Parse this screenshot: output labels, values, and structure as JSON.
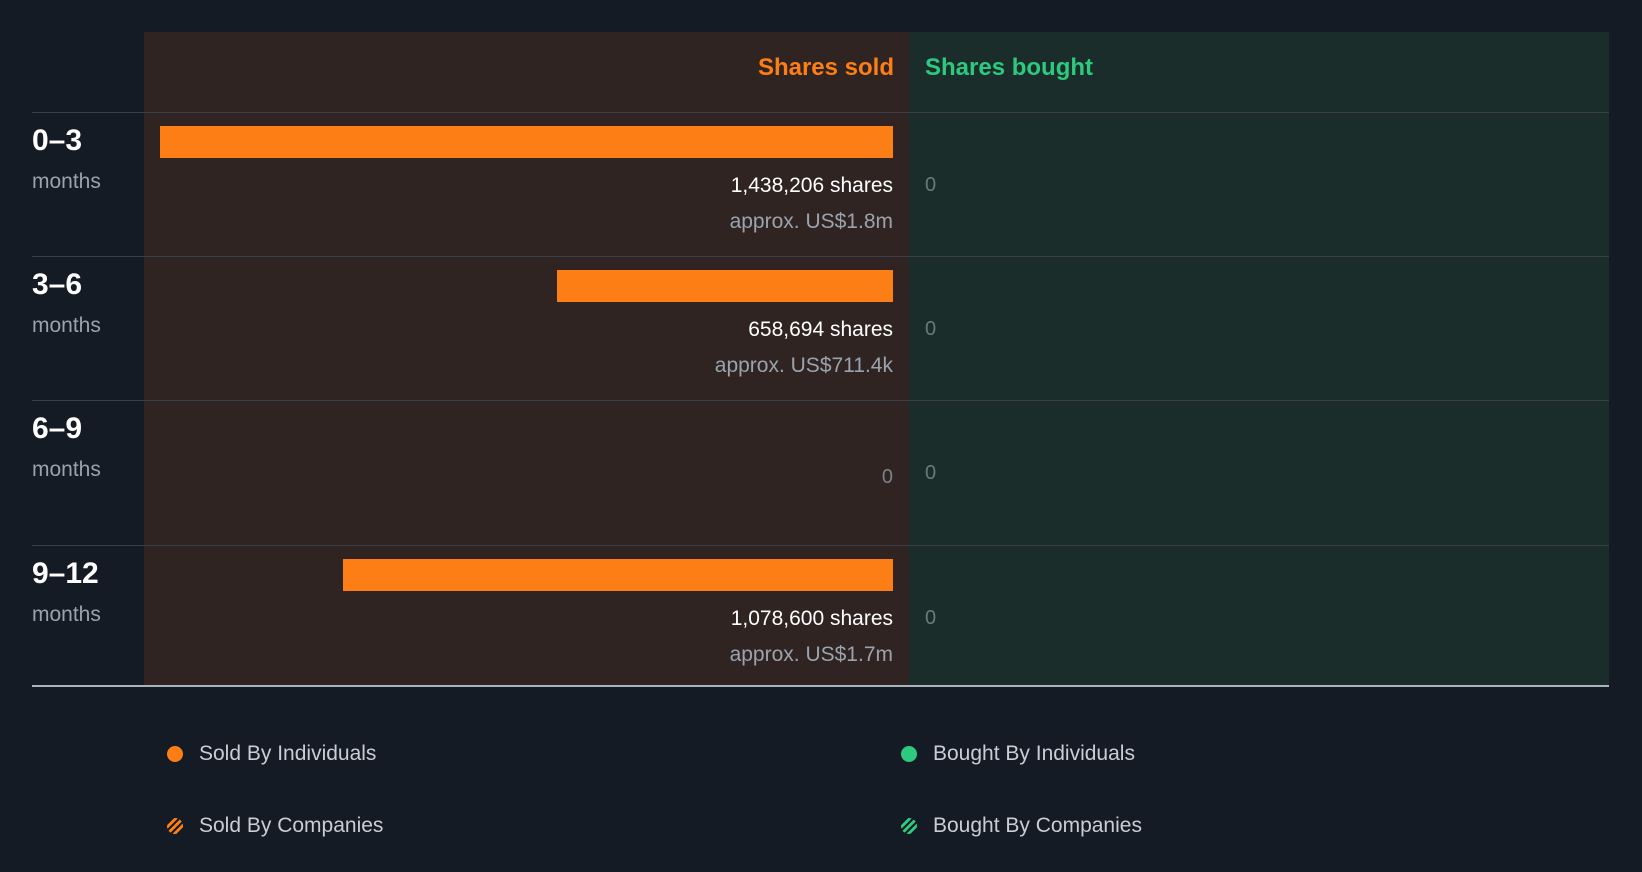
{
  "colors": {
    "sold": "#fd7e14",
    "bought": "#2dc97e",
    "background": "#151b24",
    "sold_panel": "#2f2422",
    "bought_panel": "#1a2d2b"
  },
  "headers": {
    "sold": "Shares sold",
    "bought": "Shares bought"
  },
  "chart_data": {
    "type": "bar",
    "orientation": "horizontal",
    "categories": [
      "0–3",
      "3–6",
      "6–9",
      "9–12"
    ],
    "unit_label": "months",
    "series": [
      {
        "name": "Shares sold",
        "values": [
          1438206,
          658694,
          0,
          1078600
        ]
      },
      {
        "name": "Shares bought",
        "values": [
          0,
          0,
          0,
          0
        ]
      }
    ],
    "value_labels": [
      "1,438,206 shares",
      "658,694 shares",
      "0",
      "1,078,600 shares"
    ],
    "approx_labels": [
      "approx. US$1.8m",
      "approx. US$711.4k",
      "",
      "approx. US$1.7m"
    ],
    "bought_labels": [
      "0",
      "0",
      "0",
      "0"
    ],
    "xlim": [
      0,
      1438206
    ]
  },
  "legend": [
    {
      "label": "Sold By Individuals",
      "icon": "solid-dot-icon",
      "color": "#fd7e14"
    },
    {
      "label": "Bought By Individuals",
      "icon": "solid-dot-icon",
      "color": "#2dc97e"
    },
    {
      "label": "Sold By Companies",
      "icon": "hatched-dot-icon",
      "color": "#fd7e14"
    },
    {
      "label": "Bought By Companies",
      "icon": "hatched-dot-icon",
      "color": "#2dc97e"
    }
  ]
}
